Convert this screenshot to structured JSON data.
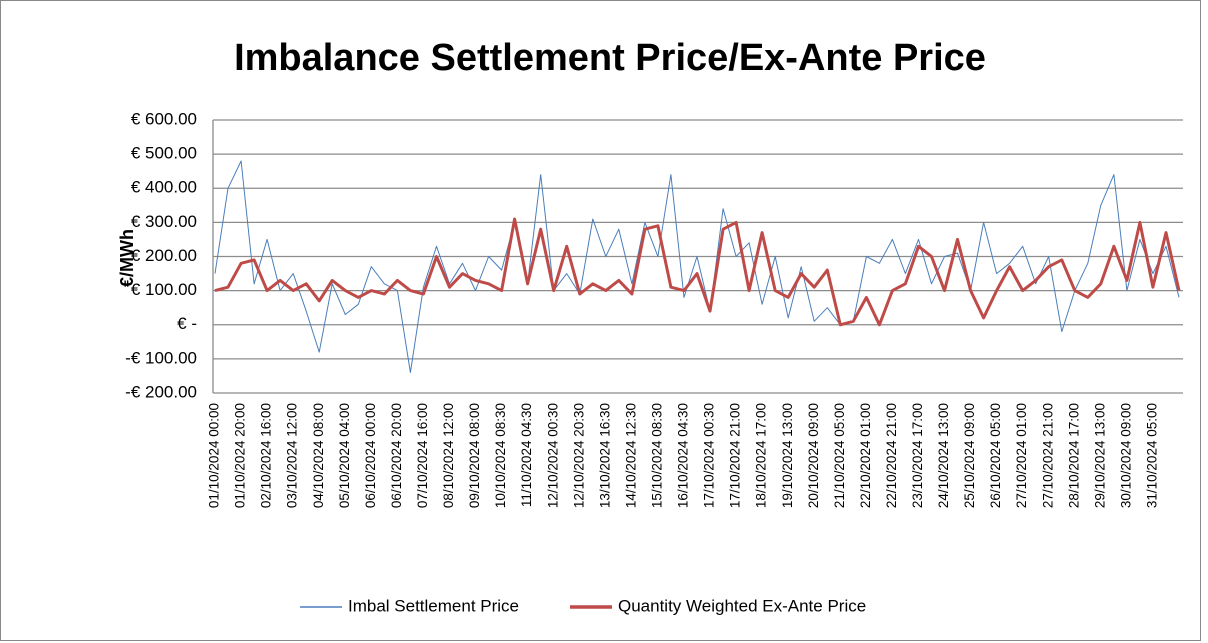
{
  "chart_data": {
    "type": "line",
    "title": "Imbalance Settlement Price/Ex-Ante Price",
    "y_label": "€/MWh",
    "categories": [
      "01/10/2024 00:00",
      null,
      "01/10/2024 20:00",
      null,
      "02/10/2024 16:00",
      null,
      "03/10/2024 12:00",
      null,
      "04/10/2024 08:00",
      null,
      "05/10/2024 04:00",
      null,
      "06/10/2024 00:00",
      null,
      "06/10/2024 20:00",
      null,
      "07/10/2024 16:00",
      null,
      "08/10/2024 12:00",
      null,
      "09/10/2024 08:00",
      null,
      "10/10/2024 08:30",
      null,
      "11/10/2024 04:30",
      null,
      "12/10/2024 00:30",
      null,
      "12/10/2024 20:30",
      null,
      "13/10/2024 16:30",
      null,
      "14/10/2024 12:30",
      null,
      "15/10/2024 08:30",
      null,
      "16/10/2024 04:30",
      null,
      "17/10/2024 00:30",
      null,
      "17/10/2024 21:00",
      null,
      "18/10/2024 17:00",
      null,
      "19/10/2024 13:00",
      null,
      "20/10/2024 09:00",
      null,
      "21/10/2024 05:00",
      null,
      "22/10/2024 01:00",
      null,
      "22/10/2024 21:00",
      null,
      "23/10/2024 17:00",
      null,
      "24/10/2024 13:00",
      null,
      "25/10/2024 09:00",
      null,
      "26/10/2024 05:00",
      null,
      "27/10/2024 01:00",
      null,
      "27/10/2024 21:00",
      null,
      "28/10/2024 17:00",
      null,
      "29/10/2024 13:00",
      null,
      "30/10/2024 09:00",
      null,
      "31/10/2024 05:00",
      null,
      null
    ],
    "series": [
      {
        "name": "Imbal Settlement Price",
        "color": "#4a7ebb",
        "width": 1,
        "values": [
          150,
          400,
          480,
          120,
          250,
          100,
          150,
          40,
          -80,
          120,
          30,
          60,
          170,
          120,
          100,
          -140,
          110,
          230,
          120,
          180,
          100,
          200,
          160,
          300,
          120,
          440,
          100,
          150,
          90,
          310,
          200,
          280,
          120,
          300,
          200,
          440,
          80,
          200,
          40,
          340,
          200,
          240,
          60,
          200,
          20,
          170,
          10,
          50,
          0,
          10,
          200,
          180,
          250,
          150,
          250,
          120,
          200,
          210,
          100,
          300,
          150,
          180,
          230,
          120,
          200,
          -20,
          100,
          180,
          350,
          440,
          100,
          250,
          150,
          230,
          80
        ]
      },
      {
        "name": "Quantity Weighted Ex-Ante Price",
        "color": "#be4b48",
        "width": 3,
        "values": [
          100,
          110,
          180,
          190,
          100,
          130,
          100,
          120,
          70,
          130,
          100,
          80,
          100,
          90,
          130,
          100,
          90,
          200,
          110,
          150,
          130,
          120,
          100,
          310,
          120,
          280,
          100,
          230,
          90,
          120,
          100,
          130,
          90,
          280,
          290,
          110,
          100,
          150,
          40,
          280,
          300,
          100,
          270,
          100,
          80,
          150,
          110,
          160,
          0,
          10,
          80,
          0,
          100,
          120,
          230,
          200,
          100,
          250,
          100,
          20,
          100,
          170,
          100,
          130,
          170,
          190,
          100,
          80,
          120,
          230,
          130,
          300,
          110,
          270,
          100
        ]
      }
    ],
    "ylim": [
      -200,
      600
    ],
    "yticks": [
      {
        "value": -200,
        "label": "-€ 200.00"
      },
      {
        "value": -100,
        "label": "-€ 100.00"
      },
      {
        "value": 0,
        "label": "€ -"
      },
      {
        "value": 100,
        "label": "€ 100.00"
      },
      {
        "value": 200,
        "label": "€ 200.00"
      },
      {
        "value": 300,
        "label": "€ 300.00"
      },
      {
        "value": 400,
        "label": "€ 400.00"
      },
      {
        "value": 500,
        "label": "€ 500.00"
      },
      {
        "value": 600,
        "label": "€ 600.00"
      }
    ],
    "grid": true,
    "legend": "bottom"
  }
}
